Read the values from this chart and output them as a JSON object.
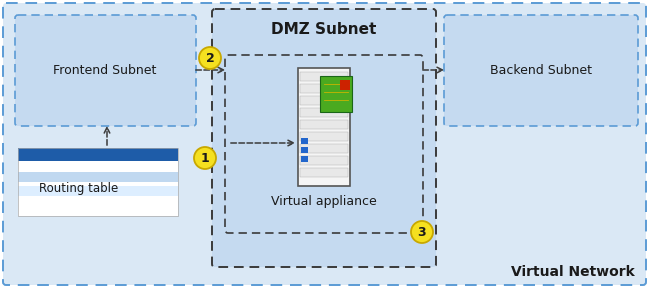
{
  "bg_color": "#ffffff",
  "outer_border_color": "#5b9bd5",
  "outer_bg_color": "#dae8f5",
  "subnet_bg_color": "#c5daf0",
  "subnet_border_color": "#5b9bd5",
  "dmz_bg_color": "#c5daf0",
  "dmz_border_color": "#3a3a3a",
  "inner_dashed_color": "#3a3a3a",
  "frontend_label": "Frontend Subnet",
  "dmz_label": "DMZ Subnet",
  "backend_label": "Backend Subnet",
  "appliance_label": "Virtual appliance",
  "routing_label": "Routing table",
  "vnet_label": "Virtual Network",
  "circle_fill": "#f5e020",
  "circle_edge": "#c8a800",
  "arrow_color": "#3a3a3a"
}
